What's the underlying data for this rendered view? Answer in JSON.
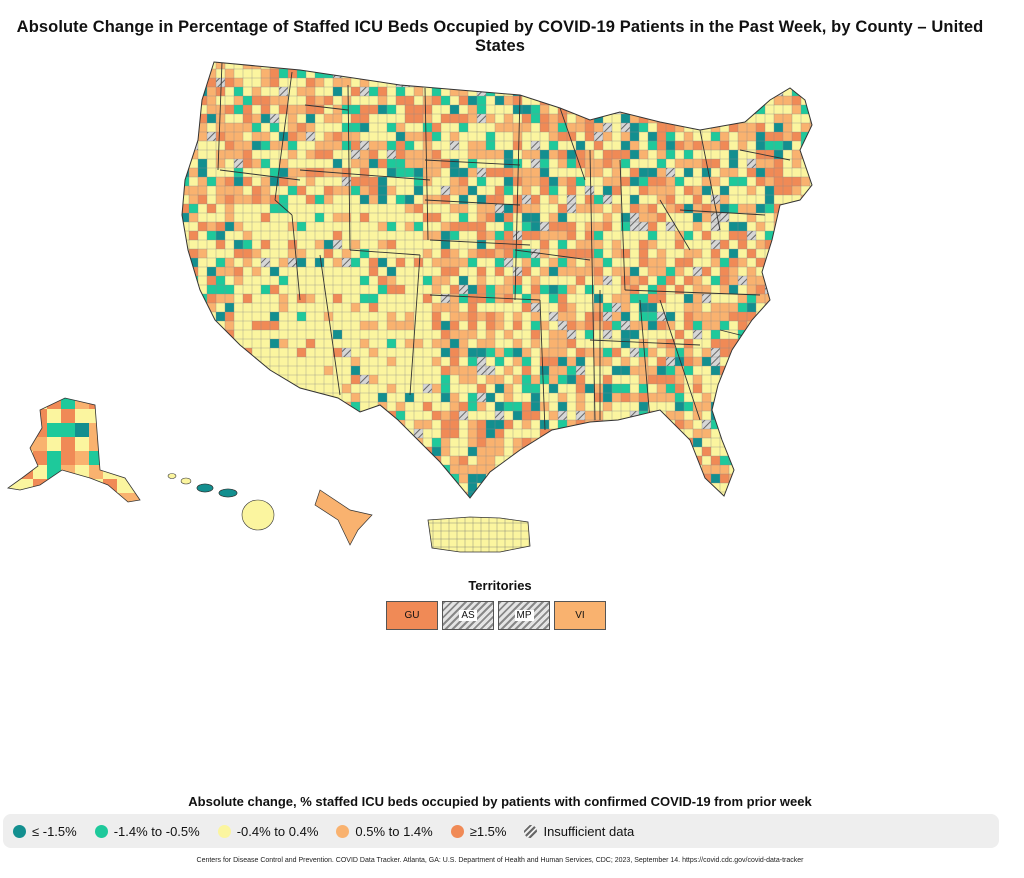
{
  "title": "Absolute Change in Percentage of Staffed ICU Beds Occupied by COVID-19 Patients in the Past Week, by County – United States",
  "colors": {
    "c1": "#138f8f",
    "c2": "#1ec99b",
    "c3": "#fbf59f",
    "c4": "#f9b26f",
    "c5": "#f08a56",
    "border": "#333333",
    "ocean": "#ffffff"
  },
  "territories": {
    "title": "Territories",
    "items": [
      {
        "code": "GU",
        "category": "c5"
      },
      {
        "code": "AS",
        "category": "insufficient"
      },
      {
        "code": "MP",
        "category": "insufficient"
      },
      {
        "code": "VI",
        "category": "c4"
      }
    ]
  },
  "legend": {
    "title": "Absolute change, % staffed ICU beds occupied by patients with confirmed COVID-19 from prior week",
    "items": [
      {
        "label": "≤ -1.5%",
        "category": "c1"
      },
      {
        "label": "-1.4% to -0.5%",
        "category": "c2"
      },
      {
        "label": "-0.4% to 0.4%",
        "category": "c3"
      },
      {
        "label": "0.5% to 1.4%",
        "category": "c4"
      },
      {
        "label": "≥1.5%",
        "category": "c5"
      },
      {
        "label": "Insufficient data",
        "category": "insufficient"
      }
    ]
  },
  "source": "Centers for Disease Control and Prevention. COVID Data Tracker. Atlanta, GA: U.S. Department of Health and Human Services, CDC; 2023, September 14. https://covid.cdc.gov/covid-data-tracker"
}
